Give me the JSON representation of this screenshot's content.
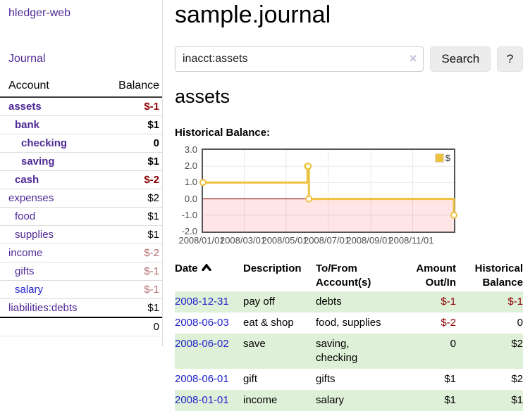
{
  "app": {
    "title": "hledger-web"
  },
  "sidebar": {
    "journal_link": "Journal",
    "accounts": {
      "header_account": "Account",
      "header_balance": "Balance",
      "rows": [
        {
          "name": "assets",
          "balance": "$-1",
          "indent": 1,
          "bold": true,
          "tone": "neg-strong"
        },
        {
          "name": "bank",
          "balance": "$1",
          "indent": 2,
          "bold": true,
          "tone": "pos"
        },
        {
          "name": "checking",
          "balance": "0",
          "indent": 3,
          "bold": true,
          "tone": "pos"
        },
        {
          "name": "saving",
          "balance": "$1",
          "indent": 3,
          "bold": true,
          "tone": "pos"
        },
        {
          "name": "cash",
          "balance": "$-2",
          "indent": 2,
          "bold": true,
          "tone": "neg-strong"
        },
        {
          "name": "expenses",
          "balance": "$2",
          "indent": 1,
          "bold": false,
          "tone": "pos"
        },
        {
          "name": "food",
          "balance": "$1",
          "indent": 2,
          "bold": false,
          "tone": "pos"
        },
        {
          "name": "supplies",
          "balance": "$1",
          "indent": 2,
          "bold": false,
          "tone": "pos"
        },
        {
          "name": "income",
          "balance": "$-2",
          "indent": 1,
          "bold": false,
          "tone": "neg-soft"
        },
        {
          "name": "gifts",
          "balance": "$-1",
          "indent": 2,
          "bold": false,
          "tone": "neg-soft"
        },
        {
          "name": "salary",
          "balance": "$-1",
          "indent": 2,
          "bold": false,
          "tone": "neg-soft",
          "link": "blue"
        },
        {
          "name": "liabilities:debts",
          "balance": "$1",
          "indent": 1,
          "bold": false,
          "tone": "pos"
        }
      ],
      "total": "0"
    }
  },
  "main": {
    "title": "sample.journal",
    "search": {
      "value": "inacct:assets",
      "clear_icon": "×",
      "button_label": "Search",
      "help_label": "?"
    },
    "account_heading": "assets",
    "chart_heading": "Historical Balance:"
  },
  "chart_data": {
    "type": "line",
    "title": "Historical Balance",
    "step": true,
    "x_range": [
      "2008-01-01",
      "2008-12-31"
    ],
    "y_range": [
      -2,
      3
    ],
    "y_ticks": [
      {
        "v": 3,
        "label": "3.0"
      },
      {
        "v": 2,
        "label": "2.0"
      },
      {
        "v": 1,
        "label": "1.0"
      },
      {
        "v": 0,
        "label": "0.0"
      },
      {
        "v": -1,
        "label": "-1.0"
      },
      {
        "v": -2,
        "label": "-2.0"
      }
    ],
    "x_ticks": [
      {
        "date": "2008-01-01",
        "label": "2008/01/01"
      },
      {
        "date": "2008-03-01",
        "label": "2008/03/01"
      },
      {
        "date": "2008-05-01",
        "label": "2008/05/01"
      },
      {
        "date": "2008-07-01",
        "label": "2008/07/01"
      },
      {
        "date": "2008-09-01",
        "label": "2008/09/01"
      },
      {
        "date": "2008-11-01",
        "label": "2008/11/01"
      }
    ],
    "series": [
      {
        "name": "$",
        "color": "#edc240",
        "marker_fill": "#ffffff",
        "points": [
          {
            "date": "2008-01-01",
            "value": 1
          },
          {
            "date": "2008-06-01",
            "value": 2
          },
          {
            "date": "2008-06-02",
            "value": 2
          },
          {
            "date": "2008-06-03",
            "value": 0
          },
          {
            "date": "2008-12-31",
            "value": -1
          }
        ]
      }
    ],
    "legend": {
      "position": "top-right",
      "label": "$"
    },
    "zero_line_color": "#8b0000",
    "negative_region_color": "rgba(255,0,0,0.10)",
    "grid": true
  },
  "register": {
    "headers": {
      "date": [
        "Date"
      ],
      "description": [
        "Description"
      ],
      "accounts": [
        "To/From",
        "Account(s)"
      ],
      "amount": [
        "Amount",
        "Out/In"
      ],
      "balance": [
        "Historical",
        "Balance"
      ]
    },
    "sort_icon": "chevron-up",
    "rows": [
      {
        "date": "2008-12-31",
        "description": "pay off",
        "accounts": "debts",
        "amount": "$-1",
        "amount_tone": "neg",
        "balance": "$-1",
        "balance_tone": "neg"
      },
      {
        "date": "2008-06-03",
        "description": "eat & shop",
        "accounts": "food, supplies",
        "amount": "$-2",
        "amount_tone": "neg",
        "balance": "0",
        "balance_tone": "pos"
      },
      {
        "date": "2008-06-02",
        "description": "save",
        "accounts": "saving, checking",
        "amount": "0",
        "amount_tone": "pos",
        "balance": "$2",
        "balance_tone": "pos"
      },
      {
        "date": "2008-06-01",
        "description": "gift",
        "accounts": "gifts",
        "amount": "$1",
        "amount_tone": "pos",
        "balance": "$2",
        "balance_tone": "pos"
      },
      {
        "date": "2008-01-01",
        "description": "income",
        "accounts": "salary",
        "amount": "$1",
        "amount_tone": "pos",
        "balance": "$1",
        "balance_tone": "pos"
      }
    ]
  },
  "colors": {
    "purple_link": "#4f2996",
    "blue_link": "#2222cc",
    "negative_strong": "#8b0000",
    "negative_soft": "#b36b6b",
    "row_highlight": "#dff0d8",
    "series_yellow": "#edc240",
    "chart_border": "#545454",
    "gridline": "#e8e8e8"
  }
}
